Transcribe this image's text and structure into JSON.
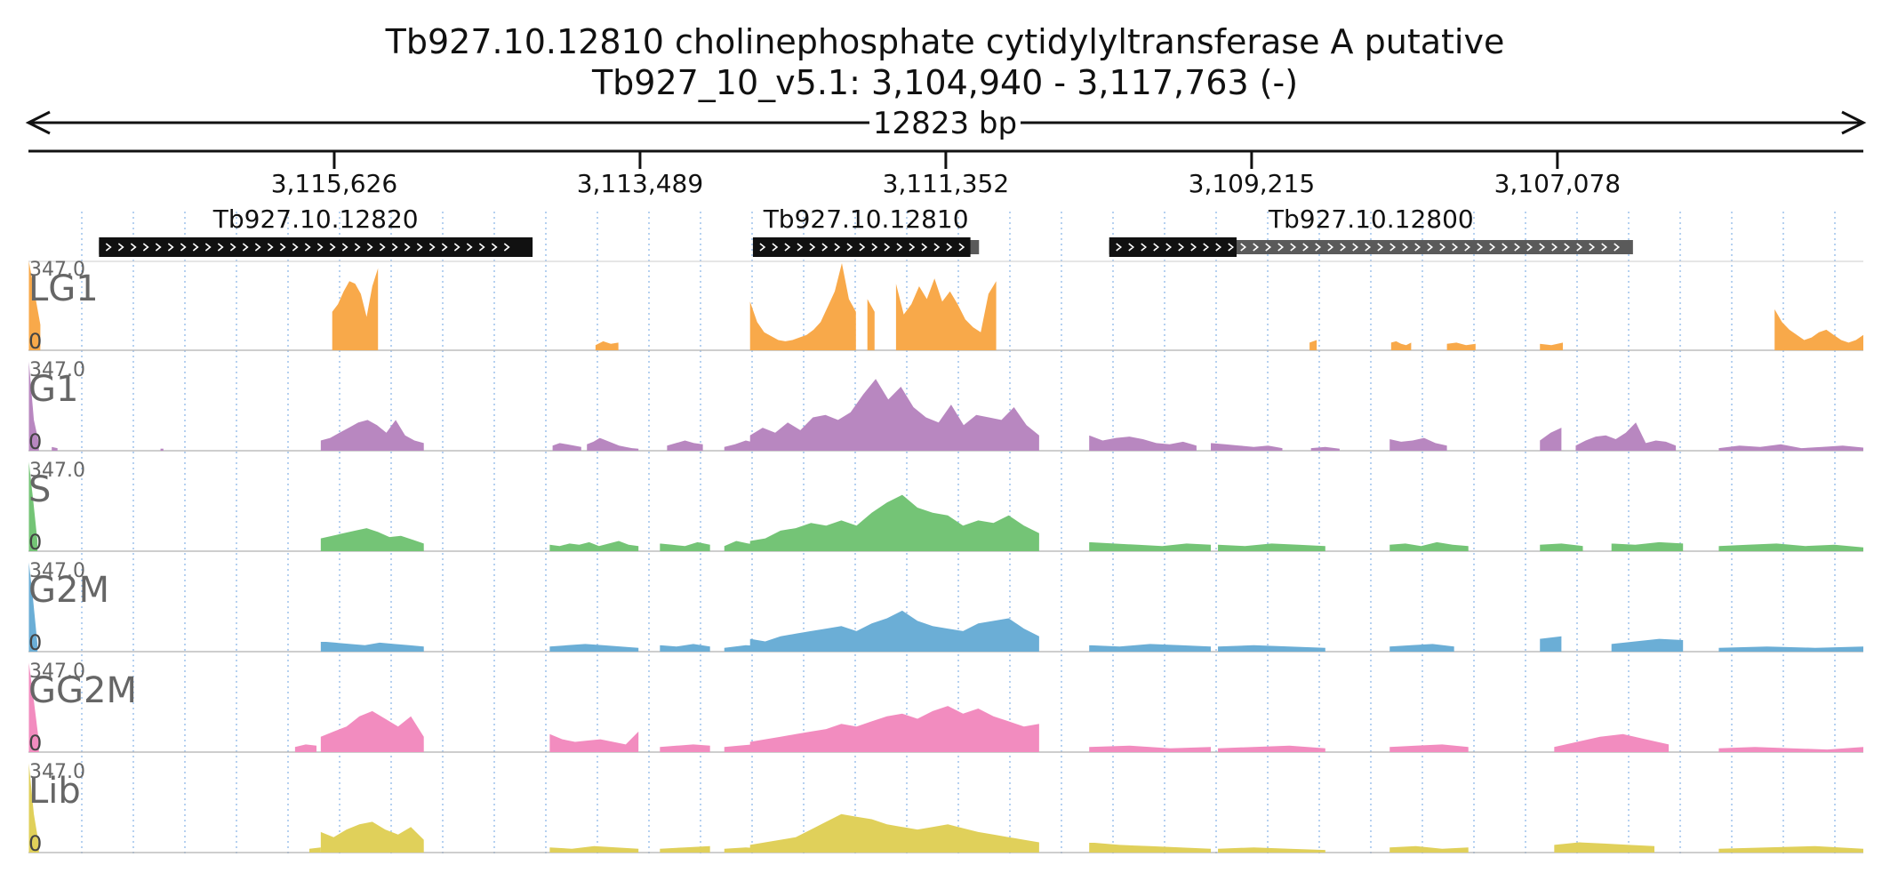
{
  "header": {
    "title": "Tb927.10.12810  cholinephosphate cytidylyltransferase A  putative",
    "location": "Tb927_10_v5.1: 3,104,940 - 3,117,763 (-)",
    "span": "12823 bp"
  },
  "chart_data": {
    "type": "area",
    "strand": "-",
    "x_range": [
      3117763,
      3104940
    ],
    "x_ticks": [
      {
        "value": 3115626,
        "label": "3,115,626"
      },
      {
        "value": 3113489,
        "label": "3,113,489"
      },
      {
        "value": 3111352,
        "label": "3,111,352"
      },
      {
        "value": 3109215,
        "label": "3,109,215"
      },
      {
        "value": 3107078,
        "label": "3,107,078"
      }
    ],
    "gridlines": true,
    "genes": [
      {
        "name": "Tb927.10.12820",
        "start": 3117270,
        "end": 3114240,
        "cds_end": 3114240,
        "strand": "+"
      },
      {
        "name": "Tb927.10.12810",
        "start": 3112700,
        "end": 3111120,
        "cds_end": 3111180,
        "strand": "+"
      },
      {
        "name": "Tb927.10.12800",
        "start": 3110210,
        "end": 3106550,
        "cds_end": 3109320,
        "strand": "+"
      }
    ],
    "y_range": [
      0,
      347.0
    ],
    "y_max_label": "347.0",
    "y_min_label": "0",
    "series": [
      {
        "name": "LG1",
        "color": "#f8a94a",
        "segments": [
          [
            3117760,
            3117680,
            347,
            100
          ],
          [
            3115640,
            3115320,
            150,
            180,
            230,
            270,
            260,
            220,
            130,
            250,
            320
          ],
          [
            3113800,
            3113640,
            20,
            35,
            25,
            30
          ],
          [
            3112720,
            3111980,
            190,
            110,
            70,
            55,
            40,
            35,
            40,
            50,
            60,
            80,
            110,
            170,
            230,
            340,
            200,
            150
          ],
          [
            3111900,
            3111850,
            200,
            150
          ],
          [
            3111700,
            3111000,
            260,
            140,
            180,
            250,
            200,
            280,
            190,
            230,
            180,
            120,
            90,
            70,
            220,
            270
          ],
          [
            3108810,
            3108760,
            30,
            40
          ],
          [
            3108240,
            3108100,
            30,
            35,
            25,
            20,
            30
          ],
          [
            3107850,
            3107650,
            25,
            30,
            20,
            25
          ],
          [
            3107200,
            3107040,
            25,
            20,
            30
          ],
          [
            3105560,
            3104940,
            160,
            110,
            80,
            60,
            40,
            50,
            70,
            80,
            60,
            40,
            30,
            40,
            60
          ]
        ]
      },
      {
        "name": "G1",
        "color": "#b887c0",
        "segments": [
          [
            3117760,
            3117690,
            347,
            120,
            30
          ],
          [
            3117600,
            3117560,
            15,
            10
          ],
          [
            3116840,
            3116820,
            8
          ],
          [
            3115720,
            3115000,
            40,
            50,
            70,
            90,
            110,
            120,
            100,
            70,
            120,
            60,
            40,
            30
          ],
          [
            3114100,
            3113900,
            20,
            30,
            25,
            20,
            15
          ],
          [
            3113860,
            3113500,
            25,
            35,
            50,
            40,
            30,
            20,
            15,
            10,
            8
          ],
          [
            3113300,
            3113050,
            20,
            30,
            40,
            30,
            25
          ],
          [
            3112900,
            3112600,
            15,
            25,
            40,
            30,
            25
          ],
          [
            3112720,
            3110700,
            60,
            90,
            70,
            110,
            80,
            130,
            140,
            120,
            150,
            220,
            280,
            200,
            250,
            170,
            130,
            110,
            180,
            100,
            140,
            130,
            120,
            170,
            100,
            60
          ],
          [
            3110350,
            3109600,
            60,
            40,
            50,
            55,
            45,
            30,
            25,
            35,
            20
          ],
          [
            3109500,
            3109000,
            30,
            25,
            20,
            15,
            20,
            10
          ],
          [
            3108800,
            3108600,
            10,
            15,
            8
          ],
          [
            3108250,
            3107850,
            45,
            35,
            40,
            50,
            30,
            20
          ],
          [
            3107200,
            3107050,
            40,
            70,
            90
          ],
          [
            3106950,
            3106250,
            20,
            40,
            55,
            60,
            45,
            70,
            110,
            30,
            40,
            35,
            20
          ],
          [
            3105950,
            3104940,
            10,
            20,
            15,
            25,
            10,
            15,
            20,
            12
          ]
        ]
      },
      {
        "name": "S",
        "color": "#74c476",
        "segments": [
          [
            3117760,
            3117700,
            347,
            200,
            40
          ],
          [
            3115720,
            3115000,
            50,
            60,
            70,
            80,
            90,
            75,
            55,
            60,
            45,
            30
          ],
          [
            3114120,
            3113500,
            25,
            20,
            30,
            25,
            35,
            20,
            30,
            40,
            25,
            20
          ],
          [
            3113350,
            3113000,
            30,
            25,
            20,
            35,
            25
          ],
          [
            3112900,
            3112650,
            20,
            40,
            30,
            25
          ],
          [
            3112720,
            3110700,
            40,
            50,
            80,
            90,
            110,
            100,
            120,
            100,
            150,
            190,
            220,
            170,
            150,
            140,
            100,
            120,
            110,
            140,
            100,
            70
          ],
          [
            3110350,
            3109500,
            35,
            30,
            25,
            20,
            30,
            25
          ],
          [
            3109450,
            3108700,
            25,
            20,
            30,
            25,
            20
          ],
          [
            3108250,
            3107700,
            25,
            30,
            20,
            35,
            25,
            20
          ],
          [
            3107200,
            3106900,
            25,
            30,
            20
          ],
          [
            3106700,
            3106200,
            30,
            25,
            35,
            30
          ],
          [
            3105950,
            3104940,
            20,
            25,
            30,
            20,
            25,
            15
          ]
        ]
      },
      {
        "name": "G2M",
        "color": "#6baed6",
        "segments": [
          [
            3117760,
            3117700,
            347,
            200,
            30
          ],
          [
            3115720,
            3115000,
            40,
            35,
            30,
            25,
            35,
            30,
            25,
            20
          ],
          [
            3114120,
            3113500,
            20,
            25,
            30,
            25,
            20,
            15
          ],
          [
            3113350,
            3113000,
            25,
            20,
            30,
            20
          ],
          [
            3112900,
            3112600,
            15,
            25,
            20
          ],
          [
            3112720,
            3110700,
            50,
            40,
            60,
            70,
            80,
            90,
            100,
            80,
            110,
            130,
            160,
            120,
            100,
            90,
            80,
            110,
            120,
            130,
            90,
            60
          ],
          [
            3110350,
            3109500,
            25,
            20,
            30,
            25,
            20
          ],
          [
            3109450,
            3108700,
            20,
            25,
            20,
            15
          ],
          [
            3108250,
            3107800,
            20,
            25,
            30,
            20
          ],
          [
            3107200,
            3107050,
            50,
            60
          ],
          [
            3106700,
            3106200,
            30,
            40,
            50,
            45
          ],
          [
            3105950,
            3104940,
            15,
            20,
            15,
            20
          ]
        ]
      },
      {
        "name": "GG2M",
        "color": "#f28cbf",
        "segments": [
          [
            3117760,
            3117690,
            347,
            200,
            40
          ],
          [
            3115900,
            3115750,
            20,
            30,
            25
          ],
          [
            3115720,
            3115000,
            60,
            80,
            100,
            140,
            160,
            130,
            100,
            140,
            60
          ],
          [
            3114120,
            3113500,
            70,
            50,
            40,
            45,
            50,
            40,
            30,
            80
          ],
          [
            3113350,
            3113000,
            20,
            25,
            30,
            25
          ],
          [
            3112900,
            3112600,
            20,
            25,
            30,
            20
          ],
          [
            3112720,
            3110700,
            40,
            50,
            60,
            70,
            80,
            90,
            110,
            100,
            120,
            140,
            150,
            130,
            160,
            180,
            150,
            170,
            140,
            120,
            100,
            110
          ],
          [
            3110350,
            3109500,
            20,
            25,
            15,
            20
          ],
          [
            3109450,
            3108700,
            15,
            20,
            25,
            15
          ],
          [
            3108250,
            3107700,
            20,
            25,
            30,
            20
          ],
          [
            3107100,
            3106300,
            20,
            40,
            60,
            70,
            50,
            30
          ],
          [
            3105950,
            3104940,
            15,
            20,
            15,
            10,
            20
          ]
        ]
      },
      {
        "name": "Lib",
        "color": "#e0d05a",
        "segments": [
          [
            3117760,
            3117690,
            347,
            150,
            30
          ],
          [
            3115800,
            3115720,
            15,
            20
          ],
          [
            3115720,
            3115000,
            80,
            60,
            90,
            110,
            120,
            90,
            70,
            100,
            50
          ],
          [
            3114120,
            3113500,
            20,
            15,
            25,
            20,
            15
          ],
          [
            3113350,
            3113000,
            15,
            20,
            25
          ],
          [
            3112900,
            3112600,
            15,
            20,
            15
          ],
          [
            3112720,
            3110700,
            30,
            40,
            50,
            60,
            90,
            120,
            150,
            140,
            130,
            110,
            100,
            90,
            100,
            110,
            95,
            80,
            70,
            60,
            50,
            40
          ],
          [
            3110350,
            3109500,
            40,
            30,
            25,
            20,
            15
          ],
          [
            3109450,
            3108700,
            15,
            20,
            15,
            10
          ],
          [
            3108250,
            3107700,
            20,
            25,
            15,
            20
          ],
          [
            3107100,
            3106400,
            30,
            40,
            35,
            30,
            25
          ],
          [
            3105950,
            3104940,
            15,
            20,
            25,
            15
          ]
        ]
      }
    ]
  }
}
